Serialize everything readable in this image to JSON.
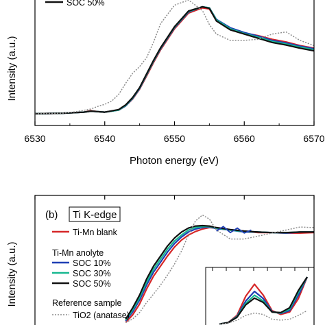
{
  "chart_data": [
    {
      "type": "line",
      "panel": "a",
      "xlabel": "Photon energy (eV)",
      "ylabel": "Intensity (a.u.)",
      "xlim": [
        6530,
        6570
      ],
      "xticks": [
        6530,
        6540,
        6550,
        6560,
        6570
      ],
      "legend_visible": [
        "SOC 50%"
      ],
      "colors": {
        "blank": "#d62728",
        "soc10": "#1f3fb4",
        "soc30": "#17b890",
        "soc50": "#111111",
        "ref": "#8c8c8c"
      },
      "series": [
        {
          "name": "Ti-Mn blank",
          "color": "#d62728",
          "x": [
            6530,
            6534,
            6537,
            6538,
            6539,
            6540,
            6542,
            6543,
            6544,
            6545,
            6546,
            6547,
            6548,
            6550,
            6552,
            6554,
            6555,
            6556,
            6558,
            6560,
            6562,
            6564,
            6566,
            6568,
            6570
          ],
          "y": [
            0.08,
            0.09,
            0.11,
            0.14,
            0.12,
            0.11,
            0.15,
            0.23,
            0.36,
            0.55,
            0.8,
            1.06,
            1.3,
            1.7,
            2.0,
            2.1,
            2.08,
            1.86,
            1.7,
            1.62,
            1.57,
            1.5,
            1.45,
            1.38,
            1.33
          ]
        },
        {
          "name": "SOC 10%",
          "color": "#1f3fb4",
          "x": [
            6530,
            6534,
            6537,
            6538,
            6539,
            6540,
            6542,
            6543,
            6544,
            6545,
            6546,
            6547,
            6548,
            6550,
            6552,
            6554,
            6555,
            6556,
            6558,
            6560,
            6562,
            6564,
            6566,
            6568,
            6570
          ],
          "y": [
            0.08,
            0.09,
            0.11,
            0.13,
            0.12,
            0.11,
            0.15,
            0.23,
            0.37,
            0.56,
            0.82,
            1.08,
            1.32,
            1.72,
            2.02,
            2.12,
            2.1,
            1.88,
            1.72,
            1.63,
            1.56,
            1.48,
            1.43,
            1.37,
            1.32
          ]
        },
        {
          "name": "SOC 30%",
          "color": "#17b890",
          "x": [
            6530,
            6534,
            6537,
            6538,
            6539,
            6540,
            6542,
            6543,
            6544,
            6545,
            6546,
            6547,
            6548,
            6550,
            6552,
            6554,
            6555,
            6556,
            6558,
            6560,
            6562,
            6564,
            6566,
            6568,
            6570
          ],
          "y": [
            0.08,
            0.09,
            0.11,
            0.13,
            0.12,
            0.11,
            0.15,
            0.24,
            0.38,
            0.57,
            0.83,
            1.09,
            1.33,
            1.73,
            2.03,
            2.12,
            2.1,
            1.87,
            1.7,
            1.61,
            1.54,
            1.46,
            1.41,
            1.35,
            1.3
          ]
        },
        {
          "name": "SOC 50%",
          "color": "#111111",
          "x": [
            6530,
            6534,
            6537,
            6538,
            6539,
            6540,
            6542,
            6543,
            6544,
            6545,
            6546,
            6547,
            6548,
            6550,
            6552,
            6554,
            6555,
            6556,
            6558,
            6560,
            6562,
            6564,
            6566,
            6568,
            6570
          ],
          "y": [
            0.08,
            0.09,
            0.11,
            0.13,
            0.12,
            0.11,
            0.16,
            0.25,
            0.39,
            0.58,
            0.84,
            1.1,
            1.34,
            1.74,
            2.04,
            2.12,
            2.09,
            1.85,
            1.68,
            1.6,
            1.52,
            1.44,
            1.39,
            1.33,
            1.28
          ]
        },
        {
          "name": "TiO2 (anatase)",
          "color": "#8c8c8c",
          "dashed": true,
          "x": [
            6530,
            6534,
            6536,
            6538,
            6539,
            6540,
            6541,
            6542,
            6543,
            6544,
            6545,
            6546,
            6547,
            6548,
            6550,
            6552,
            6554,
            6555,
            6556,
            6558,
            6560,
            6562,
            6564,
            6566,
            6568,
            6570
          ],
          "y": [
            0.08,
            0.09,
            0.12,
            0.17,
            0.22,
            0.26,
            0.32,
            0.45,
            0.66,
            0.85,
            0.98,
            1.15,
            1.45,
            1.8,
            2.15,
            2.25,
            2.05,
            1.78,
            1.6,
            1.48,
            1.48,
            1.5,
            1.6,
            1.64,
            1.48,
            1.38
          ]
        }
      ]
    },
    {
      "type": "line",
      "panel": "b",
      "panel_letter": "(b)",
      "panel_title": "Ti K-edge",
      "ylabel": "Intensity (a.u.)",
      "legend": {
        "blank_label": "Ti-Mn blank",
        "group1_title": "Ti-Mn anolyte",
        "soc10": "SOC 10%",
        "soc30": "SOC 30%",
        "soc50": "SOC 50%",
        "group2_title": "Reference sample",
        "ref_label": "TiO2 (anatase)"
      },
      "series": [
        {
          "name": "Ti-Mn blank",
          "color": "#d62728",
          "x": [
            6543,
            6544,
            6545,
            6546,
            6547,
            6548,
            6549,
            6550,
            6551,
            6552,
            6553,
            6554,
            6555,
            6556,
            6558,
            6560,
            6562,
            6564,
            6566,
            6568,
            6570
          ],
          "y": [
            0.05,
            0.2,
            0.42,
            0.72,
            0.98,
            1.18,
            1.38,
            1.56,
            1.7,
            1.8,
            1.87,
            1.92,
            1.95,
            1.94,
            1.9,
            1.87,
            1.85,
            1.85,
            1.84,
            1.84,
            1.85
          ]
        },
        {
          "name": "SOC 10%",
          "color": "#1f3fb4",
          "x": [
            6543,
            6544,
            6545,
            6546,
            6547,
            6548,
            6549,
            6550,
            6551,
            6552,
            6553,
            6554,
            6555,
            6556,
            6558,
            6560,
            6562,
            6564,
            6566,
            6568,
            6570
          ],
          "y": [
            0.08,
            0.26,
            0.5,
            0.8,
            1.06,
            1.26,
            1.46,
            1.63,
            1.76,
            1.86,
            1.92,
            1.95,
            1.96,
            1.93,
            1.9,
            1.86,
            1.86,
            1.85,
            1.84,
            1.86,
            1.86
          ]
        },
        {
          "name": "SOC 30%",
          "color": "#17b890",
          "x": [
            6543,
            6544,
            6545,
            6546,
            6547,
            6548,
            6549,
            6550,
            6551,
            6552,
            6553,
            6554,
            6555,
            6556,
            6558,
            6560,
            6562,
            6564,
            6566,
            6568,
            6570
          ],
          "y": [
            0.1,
            0.3,
            0.55,
            0.86,
            1.12,
            1.32,
            1.52,
            1.68,
            1.8,
            1.9,
            1.95,
            1.97,
            1.97,
            1.94,
            1.9,
            1.87,
            1.86,
            1.85,
            1.85,
            1.86,
            1.86
          ]
        },
        {
          "name": "SOC 50%",
          "color": "#111111",
          "x": [
            6543,
            6544,
            6545,
            6546,
            6547,
            6548,
            6549,
            6550,
            6551,
            6552,
            6553,
            6554,
            6555,
            6556,
            6558,
            6560,
            6562,
            6564,
            6566,
            6568,
            6570
          ],
          "y": [
            0.12,
            0.34,
            0.6,
            0.92,
            1.18,
            1.38,
            1.58,
            1.74,
            1.86,
            1.94,
            1.98,
            1.99,
            1.98,
            1.95,
            1.91,
            1.88,
            1.86,
            1.85,
            1.85,
            1.86,
            1.86
          ]
        },
        {
          "name": "TiO2 (anatase)",
          "color": "#8c8c8c",
          "dashed": true,
          "x": [
            6543,
            6544,
            6545,
            6546,
            6547,
            6548,
            6549,
            6550,
            6551,
            6552,
            6553,
            6554,
            6555,
            6556,
            6558,
            6560,
            6562,
            6564,
            6566,
            6568,
            6570
          ],
          "y": [
            0.05,
            0.12,
            0.25,
            0.45,
            0.62,
            0.8,
            1.0,
            1.22,
            1.48,
            1.8,
            2.08,
            2.2,
            2.12,
            1.9,
            1.72,
            1.72,
            1.78,
            1.84,
            1.9,
            1.96,
            1.95
          ]
        }
      ],
      "inset": {
        "series": [
          {
            "name": "Ti-Mn blank",
            "color": "#d62728",
            "y": [
              0.02,
              0.05,
              0.2,
              0.6,
              0.85,
              0.62,
              0.3,
              0.22,
              0.27,
              0.55,
              1.0
            ]
          },
          {
            "name": "SOC 10%",
            "color": "#1f3fb4",
            "y": [
              0.02,
              0.05,
              0.18,
              0.5,
              0.7,
              0.55,
              0.28,
              0.24,
              0.3,
              0.62,
              1.0
            ]
          },
          {
            "name": "SOC 30%",
            "color": "#17b890",
            "y": [
              0.02,
              0.05,
              0.17,
              0.45,
              0.62,
              0.5,
              0.27,
              0.25,
              0.33,
              0.68,
              1.0
            ]
          },
          {
            "name": "SOC 50%",
            "color": "#111111",
            "y": [
              0.02,
              0.05,
              0.16,
              0.42,
              0.56,
              0.47,
              0.27,
              0.26,
              0.36,
              0.72,
              1.0
            ]
          },
          {
            "name": "TiO2 (anatase)",
            "color": "#8c8c8c",
            "dashed": true,
            "y": [
              0.02,
              0.04,
              0.1,
              0.2,
              0.25,
              0.22,
              0.12,
              0.1,
              0.12,
              0.2,
              0.3
            ]
          }
        ]
      }
    }
  ]
}
